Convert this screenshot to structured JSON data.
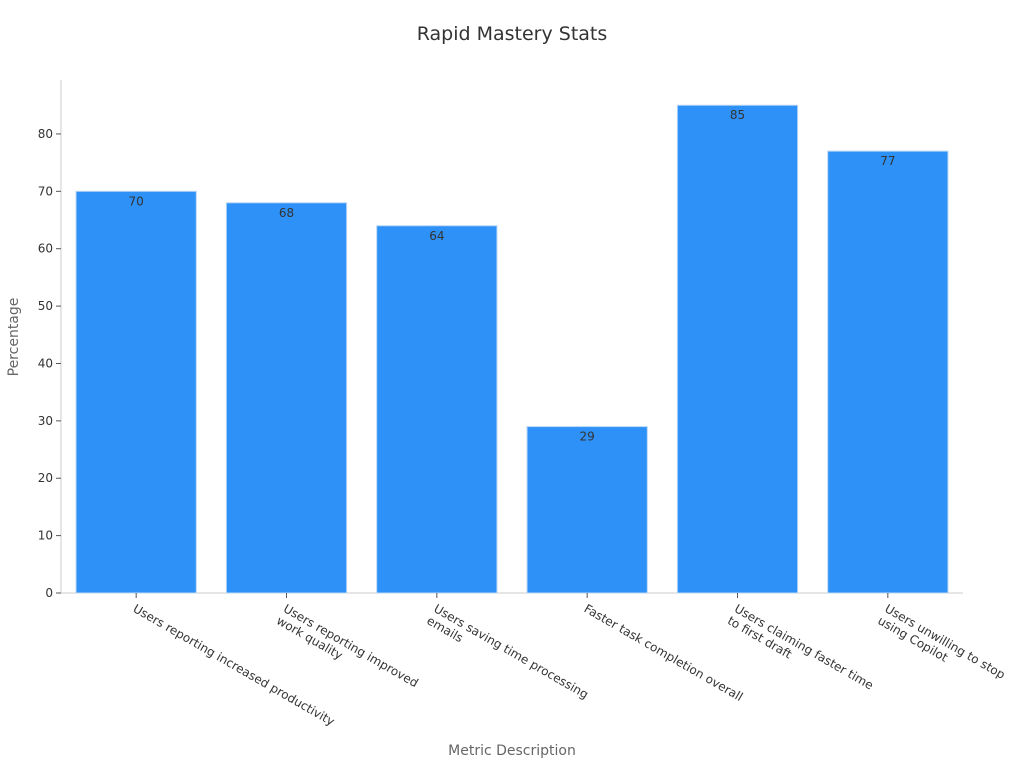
{
  "chart_data": {
    "type": "bar",
    "title": "Rapid Mastery Stats",
    "x_label": "Metric Description",
    "y_label": "Percentage",
    "categories": [
      "Users reporting increased productivity",
      "Users reporting improved\nwork quality",
      "Users saving time processing\nemails",
      "Faster task completion overall",
      "Users claiming faster time\nto first draft",
      "Users unwilling to stop\nusing Copilot"
    ],
    "values": [
      70,
      68,
      64,
      29,
      85,
      77
    ],
    "color": "#2d91f7",
    "ylim": [
      0,
      89.4
    ],
    "yticks": [
      0,
      10,
      20,
      30,
      40,
      50,
      60,
      70,
      80
    ],
    "grid": false
  }
}
